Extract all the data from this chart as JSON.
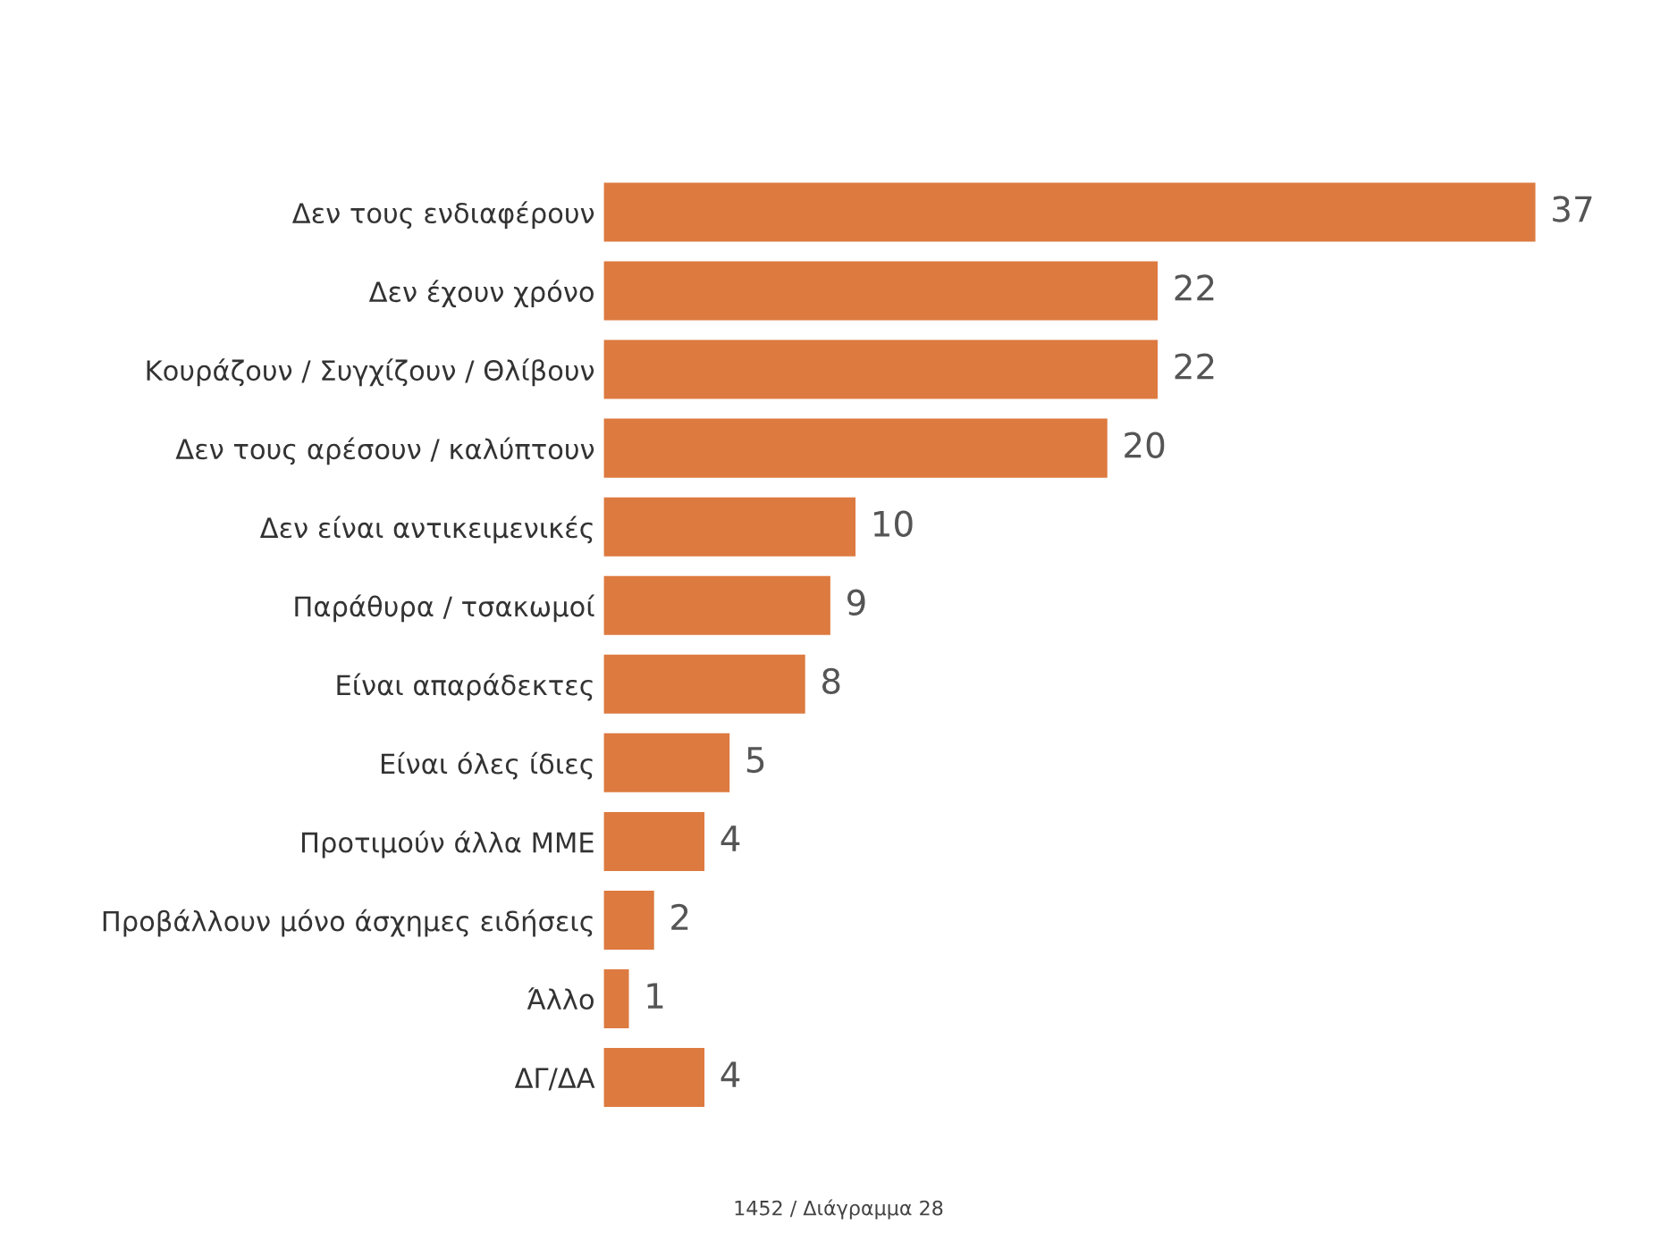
{
  "chart_data": {
    "type": "bar",
    "orientation": "horizontal",
    "categories": [
      "Δεν τους ενδιαφέρουν",
      "Δεν έχουν χρόνο",
      "Κουράζουν / Συγχίζουν / Θλίβουν",
      "Δεν τους αρέσουν / καλύπτουν",
      "Δεν είναι αντικειμενικές",
      "Παράθυρα / τσακωμοί",
      "Είναι απαράδεκτες",
      "Είναι όλες ίδιες",
      "Προτιμούν άλλα ΜΜΕ",
      "Προβάλλουν μόνο άσχημες ειδήσεις",
      "Άλλο",
      "ΔΓ/ΔΑ"
    ],
    "values": [
      37,
      22,
      22,
      20,
      10,
      9,
      8,
      5,
      4,
      2,
      1,
      4
    ],
    "color": "#dd7a40",
    "data_labels": true,
    "grid": false,
    "legend": false,
    "annotations": [
      "1452 / Διάγραμμα 28"
    ]
  }
}
